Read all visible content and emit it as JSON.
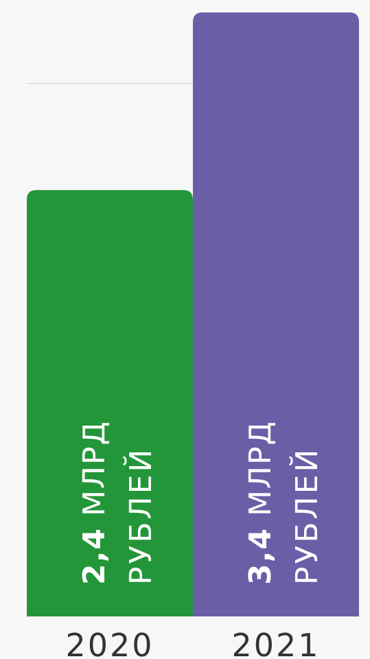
{
  "chart_data": {
    "type": "bar",
    "categories": [
      "2020",
      "2021"
    ],
    "values": [
      2.4,
      3.4
    ],
    "unit": "млрд рублей",
    "data_labels": [
      {
        "value": "2,4",
        "line1_rest": "МЛРД",
        "line2": "РУБЛЕЙ"
      },
      {
        "value": "3,4",
        "line1_rest": "МЛРД",
        "line2": "РУБЛЕЙ"
      }
    ],
    "colors": [
      "#23963a",
      "#6b5ea7"
    ],
    "grid_line_value": 3.0,
    "grid": false
  },
  "colors": {
    "background": "#f7f7f7",
    "gridline": "#cccccc",
    "tick_text": "#333333",
    "label_text": "#ffffff"
  }
}
